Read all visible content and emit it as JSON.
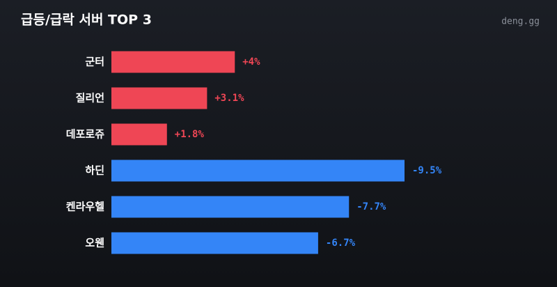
{
  "chart_data": {
    "type": "bar",
    "orientation": "horizontal",
    "title": "급등/급락 서버 TOP 3",
    "source": "deng.gg",
    "categories": [
      "군터",
      "질리언",
      "데포로쥬",
      "하딘",
      "켄라우헬",
      "오웬"
    ],
    "values": [
      4,
      3.1,
      1.8,
      -9.5,
      -7.7,
      -6.7
    ],
    "value_labels": [
      "+4%",
      "+3.1%",
      "+1.8%",
      "-9.5%",
      "-7.7%",
      "-6.7%"
    ],
    "positive_color": "#ef4655",
    "negative_color": "#3485f7"
  }
}
